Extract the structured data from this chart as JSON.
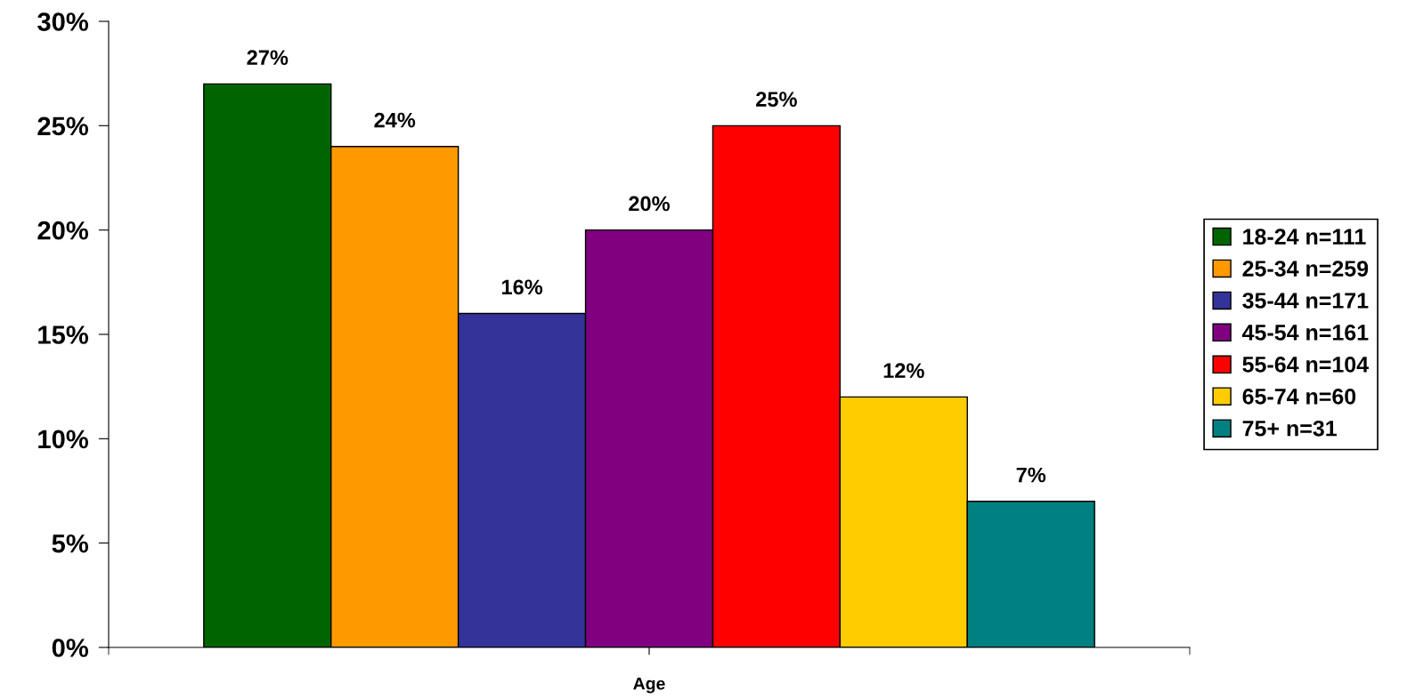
{
  "chart_data": {
    "type": "bar",
    "categories": [
      "Age"
    ],
    "series": [
      {
        "name": "18-24 n=111",
        "color": "#006400",
        "values": [
          27
        ],
        "value_labels": [
          "27%"
        ]
      },
      {
        "name": "25-34 n=259",
        "color": "#ff9900",
        "values": [
          24
        ],
        "value_labels": [
          "24%"
        ]
      },
      {
        "name": "35-44 n=171",
        "color": "#333399",
        "values": [
          16
        ],
        "value_labels": [
          "16%"
        ]
      },
      {
        "name": "45-54 n=161",
        "color": "#800080",
        "values": [
          20
        ],
        "value_labels": [
          "20%"
        ]
      },
      {
        "name": "55-64 n=104",
        "color": "#ff0000",
        "values": [
          25
        ],
        "value_labels": [
          "25%"
        ]
      },
      {
        "name": "65-74 n=60",
        "color": "#ffcc00",
        "values": [
          12
        ],
        "value_labels": [
          "12%"
        ]
      },
      {
        "name": "75+ n=31",
        "color": "#008080",
        "values": [
          7
        ],
        "value_labels": [
          "7%"
        ]
      }
    ],
    "ylim": [
      0,
      30
    ],
    "yticks": [
      {
        "value": 0,
        "label": "0%"
      },
      {
        "value": 5,
        "label": "5%"
      },
      {
        "value": 10,
        "label": "10%"
      },
      {
        "value": 15,
        "label": "15%"
      },
      {
        "value": 20,
        "label": "20%"
      },
      {
        "value": 25,
        "label": "25%"
      },
      {
        "value": 30,
        "label": "30%"
      }
    ],
    "grid": false,
    "legend": "right"
  }
}
